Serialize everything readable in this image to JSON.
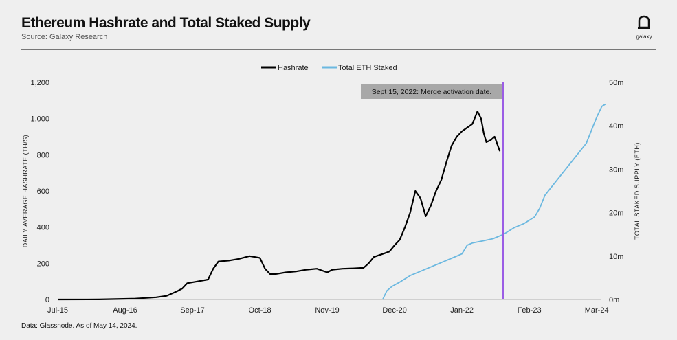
{
  "header": {
    "title": "Ethereum Hashrate and Total Staked Supply",
    "source": "Source: Galaxy Research",
    "logo_text": "galaxy"
  },
  "footer": {
    "note": "Data: Glassnode. As of May 14, 2024."
  },
  "colors": {
    "hashrate": "#000000",
    "staked": "#6bb8e0",
    "merge": "#9b5de5",
    "annotation_bg": "#a8a8a8"
  },
  "chart_data": {
    "type": "line",
    "title": "Ethereum Hashrate and Total Staked Supply",
    "x_unit": "months since Jul-2015",
    "x_ticks": [
      {
        "m": 0,
        "label": "Jul-15"
      },
      {
        "m": 13,
        "label": "Aug-16"
      },
      {
        "m": 26,
        "label": "Sep-17"
      },
      {
        "m": 39,
        "label": "Oct-18"
      },
      {
        "m": 52,
        "label": "Nov-19"
      },
      {
        "m": 65,
        "label": "Dec-20"
      },
      {
        "m": 78,
        "label": "Jan-22"
      },
      {
        "m": 91,
        "label": "Feb-23"
      },
      {
        "m": 104,
        "label": "Mar-24"
      }
    ],
    "xlim": [
      0,
      106
    ],
    "ylabel": "DAILY AVERAGE HASHRATE (TH/S)",
    "ylim": [
      0,
      1200
    ],
    "y_ticks": [
      "0",
      "200",
      "400",
      "600",
      "800",
      "1,000",
      "1,200"
    ],
    "y2label": "TOTAL STAKED SUPPLY (ETH)",
    "y2lim": [
      0,
      50
    ],
    "y2_ticks": [
      "0m",
      "10m",
      "20m",
      "30m",
      "40m",
      "50m"
    ],
    "legend": {
      "placement": "top-center",
      "entries": [
        "Hashrate",
        "Total ETH Staked"
      ]
    },
    "annotation": {
      "m": 86,
      "label": "Sept 15, 2022: Merge activation date."
    },
    "series": [
      {
        "name": "Hashrate",
        "axis": "left",
        "points": [
          [
            0,
            0
          ],
          [
            8,
            0.5
          ],
          [
            15,
            5
          ],
          [
            19,
            12
          ],
          [
            21,
            20
          ],
          [
            23,
            45
          ],
          [
            24,
            60
          ],
          [
            25,
            90
          ],
          [
            27,
            100
          ],
          [
            29,
            110
          ],
          [
            30,
            170
          ],
          [
            31,
            210
          ],
          [
            33,
            215
          ],
          [
            35,
            225
          ],
          [
            37,
            240
          ],
          [
            38,
            235
          ],
          [
            39,
            230
          ],
          [
            40,
            170
          ],
          [
            41,
            140
          ],
          [
            42,
            140
          ],
          [
            44,
            150
          ],
          [
            46,
            155
          ],
          [
            48,
            165
          ],
          [
            50,
            170
          ],
          [
            52,
            150
          ],
          [
            53,
            165
          ],
          [
            55,
            170
          ],
          [
            57,
            172
          ],
          [
            59,
            175
          ],
          [
            60,
            200
          ],
          [
            61,
            235
          ],
          [
            63,
            255
          ],
          [
            64,
            265
          ],
          [
            65,
            300
          ],
          [
            66,
            330
          ],
          [
            67,
            400
          ],
          [
            68,
            480
          ],
          [
            69,
            600
          ],
          [
            70,
            560
          ],
          [
            71,
            460
          ],
          [
            72,
            520
          ],
          [
            73,
            600
          ],
          [
            74,
            660
          ],
          [
            75,
            760
          ],
          [
            76,
            850
          ],
          [
            77,
            900
          ],
          [
            78,
            930
          ],
          [
            79,
            950
          ],
          [
            80,
            970
          ],
          [
            81,
            1040
          ],
          [
            81.7,
            1000
          ],
          [
            82.2,
            920
          ],
          [
            82.7,
            870
          ],
          [
            83.5,
            880
          ],
          [
            84.3,
            900
          ],
          [
            84.8,
            860
          ],
          [
            85.3,
            820
          ]
        ]
      },
      {
        "name": "Total ETH Staked",
        "axis": "right",
        "points": [
          [
            62.7,
            0
          ],
          [
            63.5,
            2
          ],
          [
            64.5,
            3
          ],
          [
            66,
            4
          ],
          [
            68,
            5.5
          ],
          [
            70,
            6.5
          ],
          [
            72,
            7.5
          ],
          [
            74,
            8.5
          ],
          [
            76,
            9.5
          ],
          [
            78,
            10.5
          ],
          [
            79,
            12.5
          ],
          [
            80,
            13
          ],
          [
            82,
            13.5
          ],
          [
            84,
            14
          ],
          [
            86,
            15
          ],
          [
            88,
            16.5
          ],
          [
            90,
            17.5
          ],
          [
            92,
            19
          ],
          [
            93,
            21
          ],
          [
            94,
            24
          ],
          [
            96,
            27
          ],
          [
            98,
            30
          ],
          [
            100,
            33
          ],
          [
            102,
            36
          ],
          [
            103,
            39
          ],
          [
            104,
            42
          ],
          [
            105,
            44.5
          ],
          [
            105.7,
            45
          ]
        ]
      }
    ]
  }
}
